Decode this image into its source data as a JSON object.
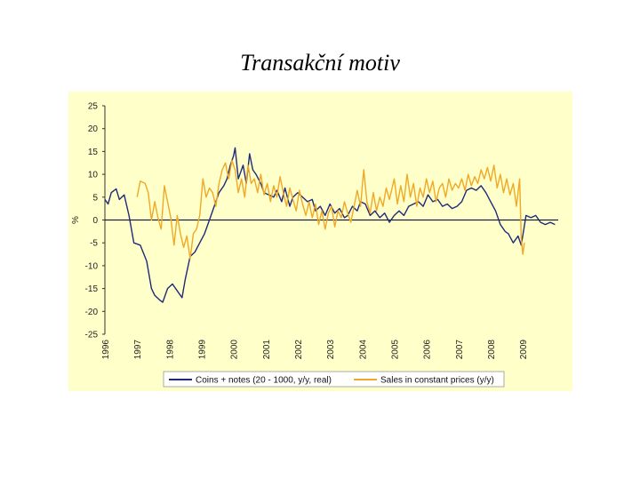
{
  "title": "Transakční motiv",
  "chart_data": {
    "type": "line",
    "ylabel": "%",
    "ylim": [
      -25,
      25
    ],
    "yticks": [
      25,
      20,
      15,
      10,
      5,
      0,
      -5,
      -10,
      -15,
      -20,
      -25
    ],
    "ytick_labels": [
      "25",
      "20",
      "15",
      "10",
      "5",
      "0",
      "-5",
      "-10",
      "-15",
      "-20",
      "-25"
    ],
    "xlim": [
      1996.0,
      2010.1
    ],
    "xticks": [
      "1996",
      "1997",
      "1998",
      "1999",
      "2000",
      "2001",
      "2002",
      "2003",
      "2004",
      "2005",
      "2006",
      "2007",
      "2008",
      "2009"
    ],
    "grid": false,
    "legend_position": "bottom",
    "colors": {
      "plot_bg": "#FFFFC9",
      "frame_bg": "#FFFFC9",
      "zero_line": "#000000"
    },
    "series": [
      {
        "name": "Coins + notes (20 - 1000, y/y, real)",
        "color": "#1F2A78",
        "points": [
          [
            1996.0,
            4.5
          ],
          [
            1996.1,
            3.5
          ],
          [
            1996.2,
            6.0
          ],
          [
            1996.35,
            6.8
          ],
          [
            1996.45,
            4.5
          ],
          [
            1996.6,
            5.5
          ],
          [
            1996.75,
            1.0
          ],
          [
            1996.9,
            -5.0
          ],
          [
            1997.1,
            -5.5
          ],
          [
            1997.3,
            -9.0
          ],
          [
            1997.45,
            -15.0
          ],
          [
            1997.55,
            -16.5
          ],
          [
            1997.7,
            -17.5
          ],
          [
            1997.8,
            -18.0
          ],
          [
            1997.95,
            -15.0
          ],
          [
            1998.1,
            -14.0
          ],
          [
            1998.25,
            -15.5
          ],
          [
            1998.4,
            -17.0
          ],
          [
            1998.5,
            -13.0
          ],
          [
            1998.65,
            -8.0
          ],
          [
            1998.8,
            -7.0
          ],
          [
            1998.95,
            -5.0
          ],
          [
            1999.1,
            -3.0
          ],
          [
            1999.25,
            0.0
          ],
          [
            1999.4,
            3.0
          ],
          [
            1999.55,
            6.0
          ],
          [
            1999.7,
            7.5
          ],
          [
            1999.8,
            9.0
          ],
          [
            1999.9,
            12.0
          ],
          [
            2000.0,
            14.0
          ],
          [
            2000.05,
            15.8
          ],
          [
            2000.15,
            9.0
          ],
          [
            2000.3,
            12.0
          ],
          [
            2000.4,
            8.0
          ],
          [
            2000.5,
            14.5
          ],
          [
            2000.6,
            11.0
          ],
          [
            2000.7,
            10.0
          ],
          [
            2000.85,
            8.0
          ],
          [
            2000.95,
            6.0
          ],
          [
            2001.1,
            5.5
          ],
          [
            2001.25,
            5.0
          ],
          [
            2001.35,
            6.5
          ],
          [
            2001.5,
            4.0
          ],
          [
            2001.6,
            7.0
          ],
          [
            2001.75,
            3.0
          ],
          [
            2001.85,
            5.0
          ],
          [
            2002.0,
            6.0
          ],
          [
            2002.15,
            5.0
          ],
          [
            2002.3,
            4.0
          ],
          [
            2002.45,
            4.5
          ],
          [
            2002.55,
            2.0
          ],
          [
            2002.7,
            3.0
          ],
          [
            2002.85,
            1.0
          ],
          [
            2003.0,
            3.5
          ],
          [
            2003.15,
            1.5
          ],
          [
            2003.3,
            2.5
          ],
          [
            2003.45,
            0.5
          ],
          [
            2003.55,
            1.0
          ],
          [
            2003.7,
            3.0
          ],
          [
            2003.85,
            2.0
          ],
          [
            2003.95,
            4.0
          ],
          [
            2004.1,
            3.5
          ],
          [
            2004.25,
            1.0
          ],
          [
            2004.4,
            2.0
          ],
          [
            2004.55,
            0.5
          ],
          [
            2004.7,
            1.5
          ],
          [
            2004.85,
            -0.5
          ],
          [
            2005.0,
            1.0
          ],
          [
            2005.15,
            2.0
          ],
          [
            2005.3,
            1.0
          ],
          [
            2005.45,
            3.0
          ],
          [
            2005.6,
            3.5
          ],
          [
            2005.75,
            4.0
          ],
          [
            2005.9,
            3.0
          ],
          [
            2006.05,
            5.5
          ],
          [
            2006.2,
            4.0
          ],
          [
            2006.35,
            4.5
          ],
          [
            2006.5,
            3.0
          ],
          [
            2006.65,
            3.5
          ],
          [
            2006.8,
            2.5
          ],
          [
            2006.95,
            3.0
          ],
          [
            2007.1,
            4.0
          ],
          [
            2007.25,
            6.5
          ],
          [
            2007.4,
            7.0
          ],
          [
            2007.55,
            6.5
          ],
          [
            2007.7,
            7.5
          ],
          [
            2007.85,
            6.0
          ],
          [
            2008.0,
            4.0
          ],
          [
            2008.15,
            2.0
          ],
          [
            2008.3,
            -1.0
          ],
          [
            2008.45,
            -2.5
          ],
          [
            2008.55,
            -3.0
          ],
          [
            2008.7,
            -5.0
          ],
          [
            2008.85,
            -3.5
          ],
          [
            2008.95,
            -5.5
          ],
          [
            2009.1,
            1.0
          ],
          [
            2009.25,
            0.5
          ],
          [
            2009.4,
            1.0
          ],
          [
            2009.55,
            -0.5
          ],
          [
            2009.7,
            -1.0
          ],
          [
            2009.85,
            -0.5
          ],
          [
            2010.0,
            -1.0
          ]
        ]
      },
      {
        "name": "Sales in constant prices (y/y)",
        "color": "#F0A827",
        "points": [
          [
            1997.0,
            5.0
          ],
          [
            1997.1,
            8.5
          ],
          [
            1997.25,
            8.0
          ],
          [
            1997.35,
            6.0
          ],
          [
            1997.45,
            0.0
          ],
          [
            1997.55,
            4.0
          ],
          [
            1997.65,
            0.5
          ],
          [
            1997.75,
            -2.0
          ],
          [
            1997.85,
            7.5
          ],
          [
            1997.95,
            4.0
          ],
          [
            1998.05,
            0.5
          ],
          [
            1998.15,
            -5.5
          ],
          [
            1998.25,
            1.0
          ],
          [
            1998.35,
            -3.0
          ],
          [
            1998.45,
            -6.0
          ],
          [
            1998.55,
            -3.5
          ],
          [
            1998.65,
            -8.5
          ],
          [
            1998.75,
            -3.0
          ],
          [
            1998.85,
            -2.0
          ],
          [
            1998.95,
            1.0
          ],
          [
            1999.05,
            9.0
          ],
          [
            1999.15,
            5.0
          ],
          [
            1999.25,
            7.0
          ],
          [
            1999.35,
            6.0
          ],
          [
            1999.45,
            3.0
          ],
          [
            1999.55,
            8.0
          ],
          [
            1999.65,
            11.0
          ],
          [
            1999.75,
            12.5
          ],
          [
            1999.85,
            9.0
          ],
          [
            1999.95,
            13.0
          ],
          [
            2000.05,
            11.0
          ],
          [
            2000.15,
            6.0
          ],
          [
            2000.25,
            9.0
          ],
          [
            2000.35,
            5.0
          ],
          [
            2000.45,
            12.0
          ],
          [
            2000.55,
            8.0
          ],
          [
            2000.65,
            9.0
          ],
          [
            2000.75,
            6.0
          ],
          [
            2000.85,
            10.0
          ],
          [
            2000.95,
            5.5
          ],
          [
            2001.05,
            8.0
          ],
          [
            2001.15,
            4.0
          ],
          [
            2001.25,
            7.5
          ],
          [
            2001.35,
            5.0
          ],
          [
            2001.45,
            9.5
          ],
          [
            2001.55,
            6.0
          ],
          [
            2001.65,
            3.0
          ],
          [
            2001.75,
            7.0
          ],
          [
            2001.85,
            4.5
          ],
          [
            2001.95,
            2.0
          ],
          [
            2002.05,
            6.5
          ],
          [
            2002.15,
            3.5
          ],
          [
            2002.25,
            1.0
          ],
          [
            2002.35,
            4.0
          ],
          [
            2002.45,
            0.5
          ],
          [
            2002.55,
            3.5
          ],
          [
            2002.65,
            -1.0
          ],
          [
            2002.75,
            2.0
          ],
          [
            2002.85,
            -2.0
          ],
          [
            2002.95,
            1.5
          ],
          [
            2003.05,
            3.0
          ],
          [
            2003.15,
            -1.5
          ],
          [
            2003.25,
            2.0
          ],
          [
            2003.35,
            0.5
          ],
          [
            2003.45,
            4.0
          ],
          [
            2003.55,
            1.5
          ],
          [
            2003.65,
            -0.5
          ],
          [
            2003.75,
            3.0
          ],
          [
            2003.85,
            6.5
          ],
          [
            2003.95,
            3.0
          ],
          [
            2004.05,
            11.0
          ],
          [
            2004.15,
            4.0
          ],
          [
            2004.25,
            1.5
          ],
          [
            2004.35,
            6.0
          ],
          [
            2004.45,
            2.0
          ],
          [
            2004.55,
            5.0
          ],
          [
            2004.65,
            3.0
          ],
          [
            2004.75,
            7.0
          ],
          [
            2004.85,
            4.5
          ],
          [
            2005.0,
            9.0
          ],
          [
            2005.1,
            3.5
          ],
          [
            2005.2,
            7.5
          ],
          [
            2005.3,
            4.0
          ],
          [
            2005.4,
            10.0
          ],
          [
            2005.5,
            5.0
          ],
          [
            2005.6,
            8.0
          ],
          [
            2005.7,
            3.0
          ],
          [
            2005.8,
            7.0
          ],
          [
            2005.9,
            5.0
          ],
          [
            2006.0,
            9.0
          ],
          [
            2006.1,
            6.0
          ],
          [
            2006.2,
            8.5
          ],
          [
            2006.3,
            4.0
          ],
          [
            2006.4,
            7.0
          ],
          [
            2006.5,
            8.0
          ],
          [
            2006.6,
            5.0
          ],
          [
            2006.7,
            9.0
          ],
          [
            2006.8,
            6.5
          ],
          [
            2006.9,
            8.0
          ],
          [
            2007.0,
            7.0
          ],
          [
            2007.1,
            9.0
          ],
          [
            2007.2,
            6.5
          ],
          [
            2007.3,
            10.0
          ],
          [
            2007.4,
            7.5
          ],
          [
            2007.5,
            9.5
          ],
          [
            2007.6,
            8.0
          ],
          [
            2007.7,
            11.0
          ],
          [
            2007.8,
            9.0
          ],
          [
            2007.9,
            11.5
          ],
          [
            2008.0,
            8.5
          ],
          [
            2008.1,
            12.0
          ],
          [
            2008.2,
            7.0
          ],
          [
            2008.3,
            10.0
          ],
          [
            2008.4,
            6.0
          ],
          [
            2008.5,
            9.0
          ],
          [
            2008.6,
            5.5
          ],
          [
            2008.7,
            8.0
          ],
          [
            2008.8,
            3.0
          ],
          [
            2008.9,
            9.0
          ],
          [
            2008.95,
            -4.0
          ],
          [
            2009.0,
            -7.5
          ],
          [
            2009.05,
            -5.0
          ]
        ]
      }
    ]
  }
}
